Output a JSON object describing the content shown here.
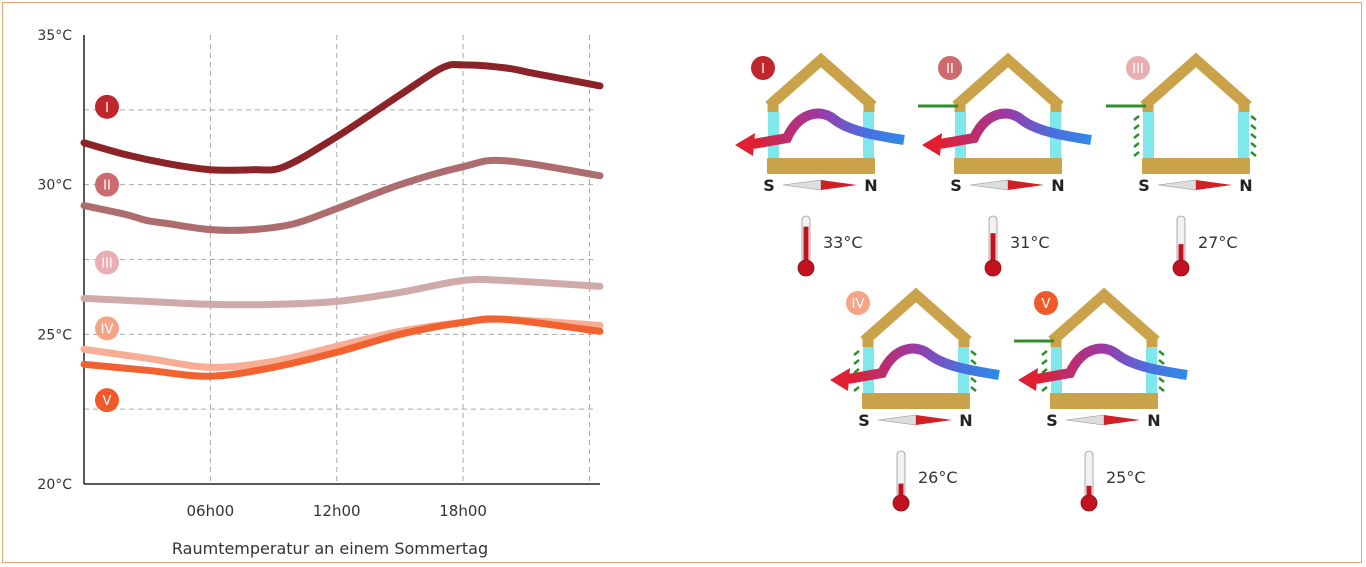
{
  "chart_data": {
    "type": "line",
    "title": "",
    "xlabel": "Raumtemperatur an einem Sommertag",
    "ylabel": "",
    "x_ticks": [
      "06h00",
      "12h00",
      "18h00"
    ],
    "x_tick_hours": [
      6,
      12,
      18
    ],
    "xlim": [
      0,
      24.5
    ],
    "y_ticks": [
      "20°C",
      "25°C",
      "30°C",
      "35°C"
    ],
    "y_tick_values": [
      20,
      25,
      30,
      35
    ],
    "ylim": [
      20,
      35
    ],
    "grid": true,
    "series": [
      {
        "name": "I",
        "color": "#8c2328",
        "x": [
          0,
          2,
          4,
          6,
          8,
          9.5,
          12,
          15,
          17,
          18,
          20,
          21.5,
          24.5
        ],
        "y": [
          31.4,
          31.0,
          30.7,
          30.5,
          30.5,
          30.6,
          31.6,
          33.0,
          33.9,
          34.0,
          33.9,
          33.7,
          33.3
        ]
      },
      {
        "name": "II",
        "color": "#ad6c6e",
        "x": [
          0,
          2,
          3,
          4,
          6,
          8,
          10,
          12,
          15,
          18,
          20,
          24.5
        ],
        "y": [
          29.3,
          29.0,
          28.8,
          28.7,
          28.5,
          28.5,
          28.7,
          29.2,
          30.0,
          30.6,
          30.8,
          30.3
        ]
      },
      {
        "name": "III",
        "color": "#d0aaa9",
        "x": [
          0,
          3,
          6,
          9,
          12,
          15,
          18,
          20,
          24.5
        ],
        "y": [
          26.2,
          26.1,
          26.0,
          26.0,
          26.1,
          26.4,
          26.8,
          26.8,
          26.6
        ]
      },
      {
        "name": "IV",
        "color": "#f7ae95",
        "x": [
          0,
          3,
          6,
          9,
          12,
          15,
          18,
          20,
          24.5
        ],
        "y": [
          24.5,
          24.2,
          23.9,
          24.1,
          24.6,
          25.1,
          25.4,
          25.5,
          25.3
        ]
      },
      {
        "name": "V",
        "color": "#f26130",
        "x": [
          0,
          3,
          6,
          9,
          12,
          15,
          18,
          20,
          24.5
        ],
        "y": [
          24.0,
          23.8,
          23.6,
          23.9,
          24.4,
          25.0,
          25.4,
          25.5,
          25.1
        ]
      }
    ],
    "line_labels": [
      {
        "label": "I",
        "value": 32.6
      },
      {
        "label": "II",
        "value": 30.0
      },
      {
        "label": "III",
        "value": 27.4
      },
      {
        "label": "IV",
        "value": 25.2
      },
      {
        "label": "V",
        "value": 22.8
      }
    ]
  },
  "scenarios": [
    {
      "id": "I",
      "color": "#c0262d",
      "temperature": "33°C",
      "shade": false,
      "overhang": false,
      "airflow": true,
      "level": 0.85
    },
    {
      "id": "II",
      "color": "#cc6a6d",
      "temperature": "31°C",
      "shade": false,
      "overhang": true,
      "airflow": true,
      "level": 0.7
    },
    {
      "id": "III",
      "color": "#e9aeb1",
      "temperature": "27°C",
      "shade": true,
      "overhang": true,
      "airflow": false,
      "level": 0.45
    },
    {
      "id": "IV",
      "color": "#f6a488",
      "temperature": "26°C",
      "shade": true,
      "overhang": false,
      "airflow": true,
      "level": 0.35
    },
    {
      "id": "V",
      "color": "#f05a2a",
      "temperature": "25°C",
      "shade": true,
      "overhang": true,
      "airflow": true,
      "level": 0.3
    }
  ],
  "compass": {
    "south": "S",
    "north": "N"
  },
  "colors": {
    "frame": "#f0a37a",
    "grid": "#aaaaaa",
    "house": "#c9a24a",
    "glass": "#7fe8ec",
    "shade": "#2f8f2f",
    "thermo_red": "#c1121f"
  }
}
